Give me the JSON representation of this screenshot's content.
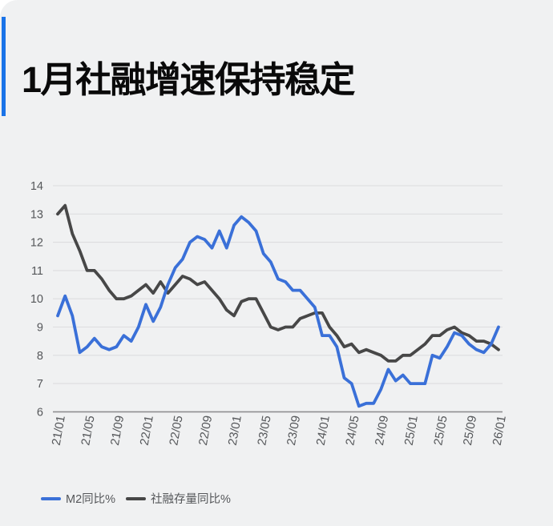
{
  "card": {
    "background_color": "#f0f1f2",
    "accent_color": "#1a73e8"
  },
  "chart_data": {
    "type": "line",
    "title": "1月社融增速保持稳定",
    "xlabel": "",
    "ylabel": "",
    "ylim": [
      6,
      14
    ],
    "grid": true,
    "legend_position": "bottom-left",
    "x_tick_every": 4,
    "axis_color": "#8e8e90",
    "gridline_color": "#dddddf",
    "tick_label_color": "#55575a",
    "x": [
      "21/01",
      "21/02",
      "21/03",
      "21/04",
      "21/05",
      "21/06",
      "21/07",
      "21/08",
      "21/09",
      "21/10",
      "21/11",
      "21/12",
      "22/01",
      "22/02",
      "22/03",
      "22/04",
      "22/05",
      "22/06",
      "22/07",
      "22/08",
      "22/09",
      "22/10",
      "22/11",
      "22/12",
      "23/01",
      "23/02",
      "23/03",
      "23/04",
      "23/05",
      "23/06",
      "23/07",
      "23/08",
      "23/09",
      "23/10",
      "23/11",
      "23/12",
      "24/01",
      "24/02",
      "24/03",
      "24/04",
      "24/05",
      "24/06",
      "24/07",
      "24/08",
      "24/09",
      "24/10",
      "24/11",
      "24/12",
      "25/01",
      "25/02",
      "25/03",
      "25/04",
      "25/05",
      "25/06",
      "25/07",
      "25/08",
      "25/09",
      "25/10",
      "25/11",
      "25/12",
      "26/01"
    ],
    "series": [
      {
        "name": "M2同比%",
        "color": "#3a70d8",
        "values": [
          9.4,
          10.1,
          9.4,
          8.1,
          8.3,
          8.6,
          8.3,
          8.2,
          8.3,
          8.7,
          8.5,
          9.0,
          9.8,
          9.2,
          9.7,
          10.5,
          11.1,
          11.4,
          12.0,
          12.2,
          12.1,
          11.8,
          12.4,
          11.8,
          12.6,
          12.9,
          12.7,
          12.4,
          11.6,
          11.3,
          10.7,
          10.6,
          10.3,
          10.3,
          10.0,
          9.7,
          8.7,
          8.7,
          8.3,
          7.2,
          7.0,
          6.2,
          6.3,
          6.3,
          6.8,
          7.5,
          7.1,
          7.3,
          7.0,
          7.0,
          7.0,
          8.0,
          7.9,
          8.3,
          8.8,
          8.7,
          8.4,
          8.2,
          8.1,
          8.4,
          9.0
        ]
      },
      {
        "name": "社融存量同比%",
        "color": "#474747",
        "values": [
          13.0,
          13.3,
          12.3,
          11.7,
          11.0,
          11.0,
          10.7,
          10.3,
          10.0,
          10.0,
          10.1,
          10.3,
          10.5,
          10.2,
          10.6,
          10.2,
          10.5,
          10.8,
          10.7,
          10.5,
          10.6,
          10.3,
          10.0,
          9.6,
          9.4,
          9.9,
          10.0,
          10.0,
          9.5,
          9.0,
          8.9,
          9.0,
          9.0,
          9.3,
          9.4,
          9.5,
          9.5,
          9.0,
          8.7,
          8.3,
          8.4,
          8.1,
          8.2,
          8.1,
          8.0,
          7.8,
          7.8,
          8.0,
          8.0,
          8.2,
          8.4,
          8.7,
          8.7,
          8.9,
          9.0,
          8.8,
          8.7,
          8.5,
          8.5,
          8.4,
          8.2
        ]
      }
    ]
  }
}
